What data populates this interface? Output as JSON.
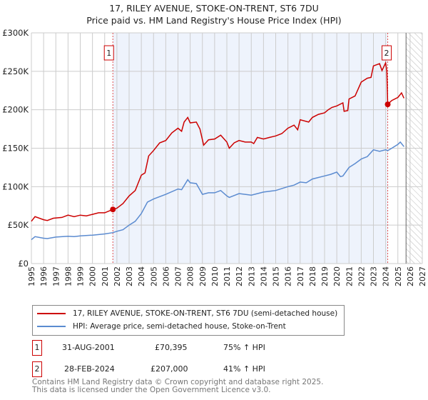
{
  "title": "17, RILEY AVENUE, STOKE-ON-TRENT, ST6 7DU",
  "subtitle": "Price paid vs. HM Land Registry's House Price Index (HPI)",
  "colors": {
    "property": "#cc0000",
    "hpi": "#5b8bd0",
    "shade": "#eef3fc"
  },
  "chart_data": {
    "type": "line",
    "title": "17, RILEY AVENUE, STOKE-ON-TRENT, ST6 7DU",
    "subtitle": "Price paid vs. HM Land Registry's House Price Index (HPI)",
    "xlim": [
      1995,
      2027
    ],
    "ylim": [
      0,
      300000
    ],
    "yticks": [
      0,
      50000,
      100000,
      150000,
      200000,
      250000,
      300000
    ],
    "ytick_labels": [
      "£0",
      "£50K",
      "£100K",
      "£150K",
      "£200K",
      "£250K",
      "£300K"
    ],
    "xticks": [
      "1995",
      "1996",
      "1997",
      "1998",
      "1999",
      "2000",
      "2001",
      "2002",
      "2003",
      "2004",
      "2005",
      "2006",
      "2007",
      "2008",
      "2009",
      "2010",
      "2011",
      "2012",
      "2013",
      "2014",
      "2015",
      "2016",
      "2017",
      "2018",
      "2019",
      "2020",
      "2021",
      "2022",
      "2023",
      "2024",
      "2025",
      "2026",
      "2027"
    ],
    "grid": true,
    "forecast_hatch_from": 2025.67,
    "series": [
      {
        "name": "17, RILEY AVENUE, STOKE-ON-TRENT, ST6 7DU (semi-detached house)",
        "color": "#cc0000",
        "x": [
          1995,
          1995.3,
          1996,
          1996.3,
          1996.8,
          1997.5,
          1998,
          1998.5,
          1999,
          1999.5,
          2000,
          2000.5,
          2001,
          2001.67,
          2002,
          2002.5,
          2003,
          2003.5,
          2004,
          2004.3,
          2004.6,
          2005,
          2005.5,
          2006,
          2006.5,
          2007,
          2007.3,
          2007.5,
          2007.8,
          2008,
          2008.5,
          2008.8,
          2009.1,
          2009.5,
          2010,
          2010.5,
          2011,
          2011.2,
          2011.6,
          2012,
          2012.5,
          2013,
          2013.2,
          2013.5,
          2014,
          2014.5,
          2015,
          2015.5,
          2016,
          2016.5,
          2016.8,
          2017,
          2017.7,
          2018,
          2018.5,
          2019,
          2019.3,
          2019.6,
          2020,
          2020.5,
          2020.6,
          2020.9,
          2021,
          2021.5,
          2022,
          2022.5,
          2022.8,
          2023,
          2023.5,
          2023.7,
          2024,
          2024.1,
          2024.17,
          2024.5,
          2025,
          2025.3,
          2025.5
        ],
        "y": [
          55000,
          61000,
          57000,
          56000,
          59000,
          60000,
          63000,
          61000,
          63000,
          62000,
          64000,
          66000,
          66000,
          70395,
          72000,
          78000,
          88000,
          95000,
          115000,
          118000,
          140000,
          147000,
          157000,
          160000,
          170000,
          176000,
          172000,
          184000,
          190000,
          183000,
          184000,
          175000,
          154000,
          161000,
          162000,
          167000,
          158000,
          150000,
          157000,
          160000,
          158000,
          158000,
          156000,
          164000,
          162000,
          164000,
          166000,
          169000,
          176000,
          180000,
          174000,
          187000,
          184000,
          190000,
          194000,
          196000,
          200000,
          203000,
          205000,
          209000,
          198000,
          199000,
          214000,
          218000,
          236000,
          241000,
          242000,
          257000,
          260000,
          251000,
          261000,
          250000,
          207000,
          212000,
          216000,
          222000,
          215000
        ]
      },
      {
        "name": "HPI: Average price, semi-detached house, Stoke-on-Trent",
        "color": "#5b8bd0",
        "x": [
          1995,
          1995.3,
          1996,
          1996.3,
          1997,
          1998,
          1998.5,
          1999,
          2000,
          2001,
          2001.67,
          2002,
          2002.5,
          2003,
          2003.5,
          2004,
          2004.5,
          2005,
          2006,
          2007,
          2007.3,
          2007.8,
          2008,
          2008.5,
          2009,
          2009.5,
          2010,
          2010.5,
          2011,
          2011.2,
          2012,
          2013,
          2014,
          2015,
          2016,
          2016.5,
          2017,
          2017.5,
          2018,
          2019,
          2019.5,
          2020,
          2020.3,
          2020.5,
          2021,
          2021.5,
          2022,
          2022.5,
          2023,
          2023.5,
          2024,
          2024.17,
          2024.5,
          2025,
          2025.2,
          2025.5
        ],
        "y": [
          31000,
          35000,
          33000,
          32500,
          34500,
          35500,
          35000,
          36000,
          37000,
          38500,
          40200,
          42000,
          44000,
          50000,
          55000,
          65000,
          80000,
          84000,
          90000,
          97000,
          96000,
          109000,
          105000,
          104000,
          90000,
          92000,
          92000,
          95000,
          88000,
          86000,
          91000,
          89000,
          93000,
          95000,
          100000,
          102000,
          106000,
          105000,
          110000,
          114000,
          116000,
          119000,
          113000,
          114000,
          125000,
          130000,
          136000,
          139000,
          148000,
          146000,
          148000,
          146800,
          150000,
          155000,
          158000,
          152000
        ]
      }
    ],
    "annotations": [
      {
        "label": "1",
        "x": 2001.67,
        "y": 70395
      },
      {
        "label": "2",
        "x": 2024.17,
        "y": 207000
      }
    ]
  },
  "legend": {
    "items": [
      {
        "label": "17, RILEY AVENUE, STOKE-ON-TRENT, ST6 7DU (semi-detached house)",
        "color": "#cc0000"
      },
      {
        "label": "HPI: Average price, semi-detached house, Stoke-on-Trent",
        "color": "#5b8bd0"
      }
    ]
  },
  "sales": [
    {
      "num": "1",
      "date": "31-AUG-2001",
      "price": "£70,395",
      "hpi": "75% ↑ HPI"
    },
    {
      "num": "2",
      "date": "28-FEB-2024",
      "price": "£207,000",
      "hpi": "41% ↑ HPI"
    }
  ],
  "footer": {
    "line1": "Contains HM Land Registry data © Crown copyright and database right 2025.",
    "line2": "This data is licensed under the Open Government Licence v3.0."
  }
}
